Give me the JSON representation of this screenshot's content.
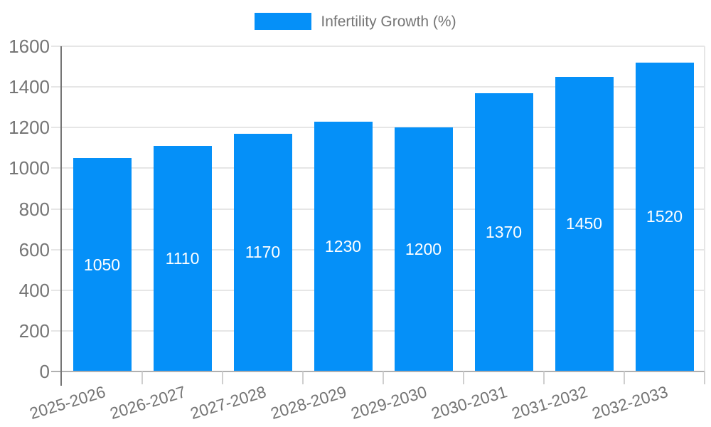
{
  "legend": {
    "label": "Infertility Growth (%)",
    "swatch_color": "#0590f8",
    "position": "top"
  },
  "chart_data": {
    "type": "bar",
    "title": "",
    "categories": [
      "2025-2026",
      "2026-2027",
      "2027-2028",
      "2028-2029",
      "2029-2030",
      "2030-2031",
      "2031-2032",
      "2032-2033"
    ],
    "values": [
      1050,
      1110,
      1170,
      1230,
      1200,
      1370,
      1450,
      1520
    ],
    "series_name": "Infertility Growth (%)",
    "xlabel": "",
    "ylabel": "",
    "ylim": [
      0,
      1600
    ],
    "yticks": [
      0,
      200,
      400,
      600,
      800,
      1000,
      1200,
      1400,
      1600
    ],
    "grid": true,
    "legend_position": "top",
    "value_labels": "inside-center"
  },
  "colors": {
    "bar": "#0590f8",
    "grid_line": "#e6e6e6",
    "x_axis_line": "#b0b0b0",
    "y_axis_line": "#757575",
    "category_tick": "#cfcfcf",
    "tick_text": "#757575",
    "legend_text": "#757575",
    "value_label_text": "#ffffff",
    "background": "#ffffff"
  }
}
